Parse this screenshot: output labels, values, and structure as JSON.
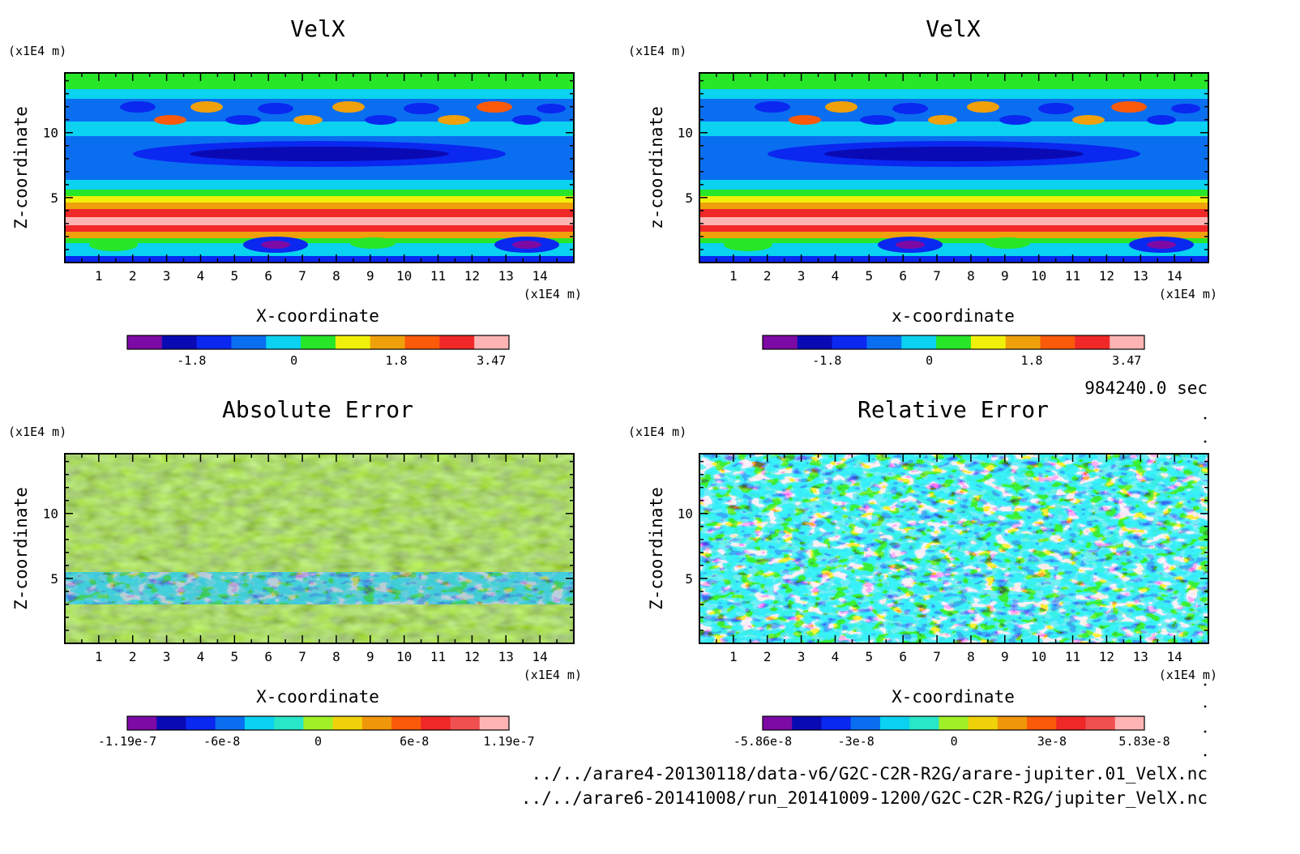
{
  "time_label": "984240.0 sec",
  "file_paths": [
    "../../arare4-20130118/data-v6/G2C-C2R-R2G/arare-jupiter.01_VelX.nc",
    "../../arare6-20141008/run_20141009-1200/G2C-C2R-R2G/jupiter_VelX.nc"
  ],
  "chart_data": [
    {
      "type": "heatmap",
      "title": "VelX",
      "xlabel": "X-coordinate",
      "ylabel": "Z-coordinate",
      "x_unit": "(x1E4 m)",
      "y_unit": "(x1E4 m)",
      "x_ticks": [
        1,
        2,
        3,
        4,
        5,
        6,
        7,
        8,
        9,
        10,
        11,
        12,
        13,
        14
      ],
      "y_ticks": [
        5,
        10
      ],
      "xlim": [
        0,
        15
      ],
      "ylim": [
        0,
        14.6
      ],
      "colorbar": {
        "labels": [
          "-1.8",
          "0",
          "1.8",
          "3.47"
        ],
        "label_values": [
          -1.8,
          0,
          1.8,
          3.47
        ],
        "range": [
          -2.93,
          3.78
        ],
        "colors": [
          "#7d0aa5",
          "#0a0ab4",
          "#0a28f0",
          "#0a6ef0",
          "#0ad2f0",
          "#28e628",
          "#f0f00a",
          "#f0a00a",
          "#fa5a0a",
          "#f02828",
          "#ffb4b4"
        ]
      }
    },
    {
      "type": "heatmap",
      "title": "VelX",
      "xlabel": "x-coordinate",
      "ylabel": "z-coordinate",
      "x_unit": "(x1E4 m)",
      "y_unit": "(x1E4 m)",
      "x_ticks": [
        1,
        2,
        3,
        4,
        5,
        6,
        7,
        8,
        9,
        10,
        11,
        12,
        13,
        14
      ],
      "y_ticks": [
        5,
        10
      ],
      "xlim": [
        0,
        15
      ],
      "ylim": [
        0,
        14.6
      ],
      "colorbar": {
        "labels": [
          "-1.8",
          "0",
          "1.8",
          "3.47"
        ],
        "label_values": [
          -1.8,
          0,
          1.8,
          3.47
        ],
        "range": [
          -2.93,
          3.78
        ],
        "colors": [
          "#7d0aa5",
          "#0a0ab4",
          "#0a28f0",
          "#0a6ef0",
          "#0ad2f0",
          "#28e628",
          "#f0f00a",
          "#f0a00a",
          "#fa5a0a",
          "#f02828",
          "#ffb4b4"
        ]
      }
    },
    {
      "type": "heatmap",
      "title": "Absolute Error",
      "xlabel": "X-coordinate",
      "ylabel": "Z-coordinate",
      "x_unit": "(x1E4 m)",
      "y_unit": "(x1E4 m)",
      "x_ticks": [
        1,
        2,
        3,
        4,
        5,
        6,
        7,
        8,
        9,
        10,
        11,
        12,
        13,
        14
      ],
      "y_ticks": [
        5,
        10
      ],
      "xlim": [
        0,
        15
      ],
      "ylim": [
        0,
        14.6
      ],
      "colorbar": {
        "labels": [
          "-1.19e-7",
          "-6e-8",
          "0",
          "6e-8",
          "1.19e-7"
        ],
        "label_values": [
          -1.19e-07,
          -6e-08,
          0,
          6e-08,
          1.19e-07
        ],
        "range": [
          -1.19e-07,
          1.19e-07
        ],
        "colors": [
          "#7d0aa5",
          "#0a0ab4",
          "#0a28f0",
          "#0a6ef0",
          "#0ad2f0",
          "#28e6c8",
          "#a0f028",
          "#f0d20a",
          "#f0960a",
          "#fa5a0a",
          "#f02828",
          "#f05050",
          "#ffb4b4"
        ]
      }
    },
    {
      "type": "heatmap",
      "title": "Relative Error",
      "xlabel": "X-coordinate",
      "ylabel": "Z-coordinate",
      "x_unit": "(x1E4 m)",
      "y_unit": "(x1E4 m)",
      "x_ticks": [
        1,
        2,
        3,
        4,
        5,
        6,
        7,
        8,
        9,
        10,
        11,
        12,
        13,
        14
      ],
      "y_ticks": [
        5,
        10
      ],
      "xlim": [
        0,
        15
      ],
      "ylim": [
        0,
        14.6
      ],
      "colorbar": {
        "labels": [
          "-5.86e-8",
          "-3e-8",
          "0",
          "3e-8",
          "5.83e-8"
        ],
        "label_values": [
          -5.86e-08,
          -3e-08,
          0,
          3e-08,
          5.83e-08
        ],
        "range": [
          -5.86e-08,
          5.83e-08
        ],
        "colors": [
          "#7d0aa5",
          "#0a0ab4",
          "#0a28f0",
          "#0a6ef0",
          "#0ad2f0",
          "#28e6c8",
          "#a0f028",
          "#f0d20a",
          "#f0960a",
          "#fa5a0a",
          "#f02828",
          "#f05050",
          "#ffb4b4"
        ]
      }
    }
  ]
}
